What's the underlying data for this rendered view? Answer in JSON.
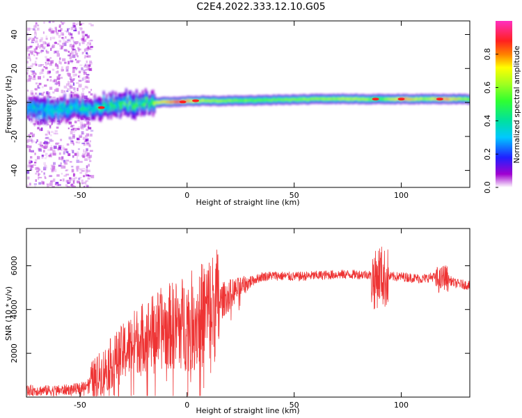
{
  "title": "C2E4.2022.333.12.10.G05",
  "chart_data": [
    {
      "type": "heatmap",
      "xlabel": "Height of straight line (km)",
      "ylabel": "Frequency (Hz)",
      "xlim": [
        -75,
        132
      ],
      "ylim": [
        -50,
        48
      ],
      "xticks": [
        -50,
        0,
        50,
        100
      ],
      "yticks": [
        -40,
        -20,
        0,
        20,
        40
      ],
      "colorbar": {
        "label": "Normalized spectral amplitude",
        "range": [
          0,
          1
        ],
        "ticks": [
          "0.0",
          "0.2",
          "0.4",
          "0.6",
          "0.8"
        ],
        "ticks_value": [
          0.0,
          0.2,
          0.4,
          0.6,
          0.8
        ],
        "colormap": "gist_ncar-like"
      },
      "ridge": {
        "x": [
          -75,
          -60,
          -45,
          -35,
          -25,
          -15,
          -5,
          5,
          20,
          40,
          60,
          80,
          90,
          100,
          110,
          120,
          132
        ],
        "freq": [
          -4,
          -4,
          -3,
          -2,
          -1,
          0,
          0.5,
          1,
          1,
          1.5,
          2,
          2,
          2,
          2,
          2,
          2,
          2
        ],
        "amplitude": [
          0.35,
          0.4,
          0.5,
          0.55,
          0.55,
          0.7,
          0.95,
          0.7,
          0.6,
          0.6,
          0.65,
          0.7,
          0.55,
          0.85,
          0.65,
          0.85,
          0.6
        ]
      }
    },
    {
      "type": "line",
      "xlabel": "Height of straight line (km)",
      "ylabel": "SNR (10 * v/v)",
      "xlim": [
        -75,
        132
      ],
      "ylim": [
        0,
        7700
      ],
      "xticks": [
        -50,
        0,
        50,
        100
      ],
      "yticks": [
        2000,
        4000,
        6000
      ],
      "color": "#ee3333",
      "series": [
        {
          "x": [
            -75,
            -60,
            -50,
            -45,
            -40,
            -35,
            -30,
            -25,
            -20,
            -15,
            -10,
            -5,
            0,
            5,
            10,
            15,
            20,
            25,
            30,
            35,
            40,
            50,
            60,
            70,
            80,
            85,
            88,
            90,
            92,
            95,
            100,
            110,
            115,
            118,
            120,
            125,
            132
          ],
          "values": [
            300,
            300,
            400,
            700,
            1100,
            1600,
            2000,
            2500,
            2800,
            3000,
            3200,
            3300,
            3400,
            3600,
            4000,
            4300,
            4700,
            5000,
            5300,
            5500,
            5550,
            5500,
            5550,
            5600,
            5600,
            5600,
            5300,
            5700,
            5400,
            5500,
            5500,
            5400,
            5500,
            5300,
            5500,
            5200,
            5100
          ]
        }
      ]
    }
  ]
}
